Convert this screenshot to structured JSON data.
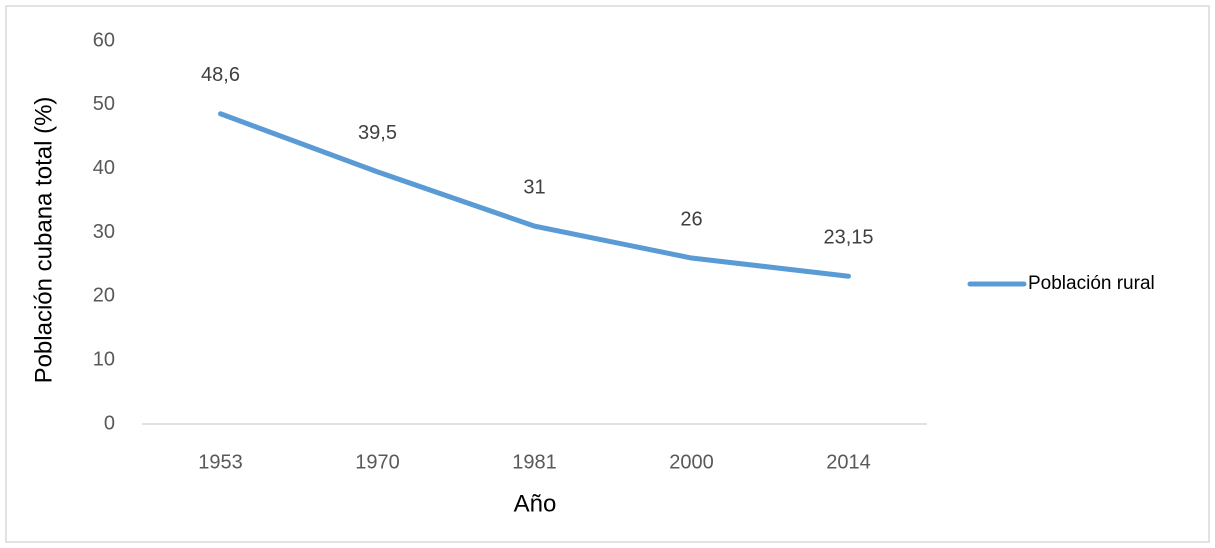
{
  "chart_data": {
    "type": "line",
    "x_label": "Año",
    "y_label": "Población cubana total (%)",
    "categories": [
      "1953",
      "1970",
      "1981",
      "2000",
      "2014"
    ],
    "series": [
      {
        "name": "Población rural",
        "color": "#5b9bd5",
        "values": [
          48.6,
          39.5,
          31,
          26,
          23.15
        ],
        "value_labels": [
          "48,6",
          "39,5",
          "31",
          "26",
          "23,15"
        ]
      }
    ],
    "ylim": [
      0,
      60
    ],
    "yticks": [
      0,
      10,
      20,
      30,
      40,
      50,
      60
    ],
    "grid": false,
    "legend": "right"
  }
}
